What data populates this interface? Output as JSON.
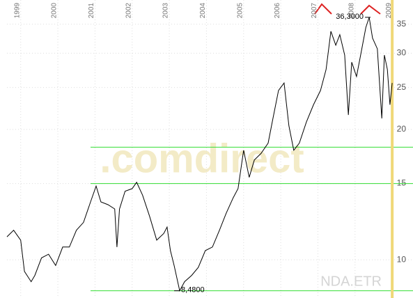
{
  "chart_data": {
    "type": "line",
    "x": [
      1998.63,
      1998.81,
      1999.0,
      1999.1,
      1999.28,
      1999.38,
      1999.56,
      1999.75,
      1999.94,
      2000.13,
      2000.31,
      2000.5,
      2000.69,
      2000.88,
      2001.03,
      2001.16,
      2001.35,
      2001.53,
      2001.59,
      2001.66,
      2001.81,
      2002.0,
      2002.12,
      2002.28,
      2002.47,
      2002.66,
      2002.85,
      2002.94,
      2003.03,
      2003.13,
      2003.28,
      2003.41,
      2003.6,
      2003.78,
      2003.97,
      2004.16,
      2004.35,
      2004.53,
      2004.72,
      2004.85,
      2005.0,
      2005.15,
      2005.29,
      2005.47,
      2005.66,
      2005.79,
      2005.94,
      2006.09,
      2006.22,
      2006.35,
      2006.5,
      2006.69,
      2006.88,
      2007.07,
      2007.22,
      2007.35,
      2007.48,
      2007.59,
      2007.72,
      2007.82,
      2007.91,
      2008.04,
      2008.15,
      2008.29,
      2008.38,
      2008.47,
      2008.6,
      2008.72,
      2008.79,
      2008.87,
      2008.94,
      2009.0
    ],
    "series": [
      {
        "name": "NDA.ETR",
        "color": "#000000",
        "values": [
          11.3,
          11.7,
          11.1,
          9.4,
          8.9,
          9.2,
          10.1,
          10.3,
          9.7,
          10.7,
          10.7,
          11.7,
          12.2,
          13.6,
          14.8,
          13.6,
          13.4,
          13.1,
          10.7,
          13.1,
          14.4,
          14.6,
          15.1,
          14.1,
          12.6,
          11.1,
          11.5,
          11.9,
          10.5,
          9.7,
          8.48,
          8.9,
          9.2,
          9.6,
          10.5,
          10.7,
          11.7,
          12.8,
          13.9,
          14.6,
          17.9,
          15.5,
          17.0,
          17.6,
          18.6,
          21.2,
          24.6,
          25.6,
          20.4,
          17.9,
          18.6,
          20.8,
          22.8,
          24.6,
          27.5,
          33.7,
          31.3,
          33.1,
          29.7,
          21.6,
          28.6,
          26.5,
          29.7,
          34.4,
          36.3,
          32.5,
          30.7,
          21.2,
          29.7,
          27.5,
          22.8,
          25.6
        ]
      }
    ],
    "xlim": [
      1998.63,
      2009.56
    ],
    "xticks": [
      1999,
      2000,
      2001,
      2002,
      2003,
      2004,
      2005,
      2006,
      2007,
      2008,
      2009
    ],
    "ylim": [
      8.16,
      39.8
    ],
    "yticks": [
      10,
      15,
      20,
      25,
      30,
      35
    ],
    "log_scale": true,
    "grid": true,
    "watermark": ".comdirect",
    "annotations": [
      {
        "text": "36,3000",
        "x": 2008.38,
        "y": 36.3
      },
      {
        "text": "8,4800",
        "x": 2003.28,
        "y": 8.48
      }
    ],
    "hlines": [
      18.2,
      15.0,
      8.48
    ],
    "hline_color": "#33dd33",
    "vline": 2009.0,
    "vline_color": "#f0d878"
  }
}
